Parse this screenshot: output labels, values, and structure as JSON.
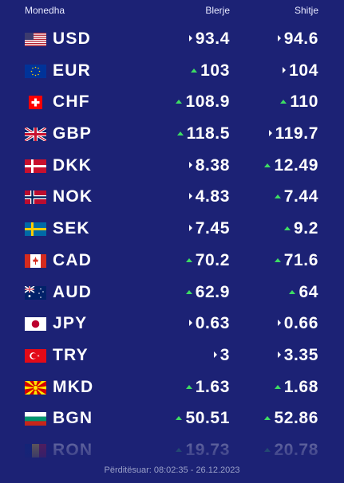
{
  "header": {
    "currency": "Monedha",
    "buy": "Blerje",
    "sell": "Shitje"
  },
  "rates": [
    {
      "code": "USD",
      "flag": "us-flag-icon",
      "buy": "93.4",
      "buy_trend": "flat",
      "sell": "94.6",
      "sell_trend": "flat"
    },
    {
      "code": "EUR",
      "flag": "eu-flag-icon",
      "buy": "103",
      "buy_trend": "up",
      "sell": "104",
      "sell_trend": "flat"
    },
    {
      "code": "CHF",
      "flag": "ch-flag-icon",
      "buy": "108.9",
      "buy_trend": "up",
      "sell": "110",
      "sell_trend": "up"
    },
    {
      "code": "GBP",
      "flag": "gb-flag-icon",
      "buy": "118.5",
      "buy_trend": "up",
      "sell": "119.7",
      "sell_trend": "flat"
    },
    {
      "code": "DKK",
      "flag": "dk-flag-icon",
      "buy": "8.38",
      "buy_trend": "flat",
      "sell": "12.49",
      "sell_trend": "up"
    },
    {
      "code": "NOK",
      "flag": "no-flag-icon",
      "buy": "4.83",
      "buy_trend": "flat",
      "sell": "7.44",
      "sell_trend": "up"
    },
    {
      "code": "SEK",
      "flag": "se-flag-icon",
      "buy": "7.45",
      "buy_trend": "flat",
      "sell": "9.2",
      "sell_trend": "up"
    },
    {
      "code": "CAD",
      "flag": "ca-flag-icon",
      "buy": "70.2",
      "buy_trend": "up",
      "sell": "71.6",
      "sell_trend": "up"
    },
    {
      "code": "AUD",
      "flag": "au-flag-icon",
      "buy": "62.9",
      "buy_trend": "up",
      "sell": "64",
      "sell_trend": "up"
    },
    {
      "code": "JPY",
      "flag": "jp-flag-icon",
      "buy": "0.63",
      "buy_trend": "flat",
      "sell": "0.66",
      "sell_trend": "flat"
    },
    {
      "code": "TRY",
      "flag": "tr-flag-icon",
      "buy": "3",
      "buy_trend": "flat",
      "sell": "3.35",
      "sell_trend": "flat"
    },
    {
      "code": "MKD",
      "flag": "mk-flag-icon",
      "buy": "1.63",
      "buy_trend": "up",
      "sell": "1.68",
      "sell_trend": "up"
    },
    {
      "code": "BGN",
      "flag": "bg-flag-icon",
      "buy": "50.51",
      "buy_trend": "up",
      "sell": "52.86",
      "sell_trend": "up"
    },
    {
      "code": "RON",
      "flag": "ro-flag-icon",
      "buy": "19.73",
      "buy_trend": "up",
      "sell": "20.78",
      "sell_trend": "up"
    }
  ],
  "footer": {
    "updated": "Përditësuar: 08:02:35 - 26.12.2023"
  },
  "colors": {
    "background": "#1c2275",
    "up_arrow": "#3ddc63",
    "text": "#ffffff"
  }
}
